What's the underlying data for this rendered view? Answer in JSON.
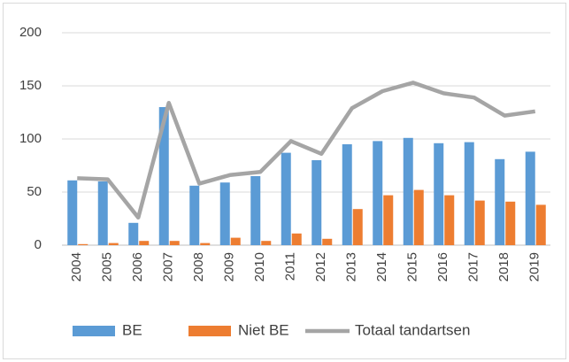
{
  "chart_data": {
    "type": "bar",
    "categories": [
      "2004",
      "2005",
      "2006",
      "2007",
      "2008",
      "2009",
      "2010",
      "2011",
      "2012",
      "2013",
      "2014",
      "2015",
      "2016",
      "2017",
      "2018",
      "2019"
    ],
    "series": [
      {
        "name": "BE",
        "color": "#5b9bd5",
        "values": [
          61,
          60,
          21,
          130,
          56,
          59,
          65,
          87,
          80,
          95,
          98,
          101,
          96,
          97,
          81,
          88
        ]
      },
      {
        "name": "Niet BE",
        "color": "#ed7d31",
        "values": [
          1,
          2,
          4,
          4,
          2,
          7,
          4,
          11,
          6,
          34,
          47,
          52,
          47,
          42,
          41,
          38
        ]
      },
      {
        "name": "Totaal tandartsen",
        "color": "#a5a5a5",
        "type": "line",
        "values": [
          63,
          62,
          26,
          134,
          58,
          66,
          69,
          98,
          86,
          129,
          145,
          153,
          143,
          139,
          122,
          126
        ]
      }
    ],
    "ylim": [
      0,
      200
    ],
    "yticks": [
      0,
      50,
      100,
      150,
      200
    ],
    "grid": true,
    "legend": "bottom"
  }
}
